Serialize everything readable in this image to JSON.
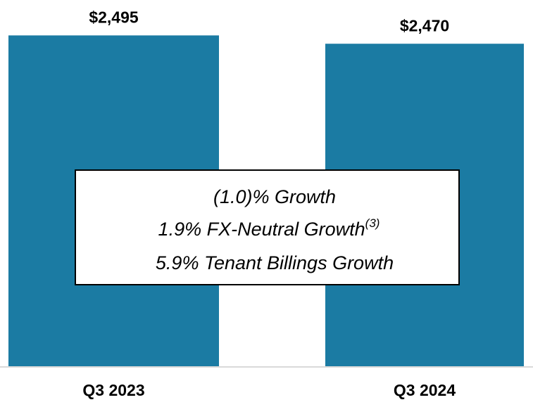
{
  "chart_data": {
    "type": "bar",
    "categories": [
      "Q3 2023",
      "Q3 2024"
    ],
    "values": [
      2495,
      2470
    ],
    "value_labels": [
      "$2,495",
      "$2,470"
    ],
    "color": "#1b7ba3",
    "ylim": [
      1500,
      2500
    ],
    "annotation": {
      "lines": [
        "(1.0)% Growth",
        "1.9% FX-Neutral Growth",
        "5.9% Tenant Billings Growth"
      ],
      "footnote": "(3)"
    }
  }
}
